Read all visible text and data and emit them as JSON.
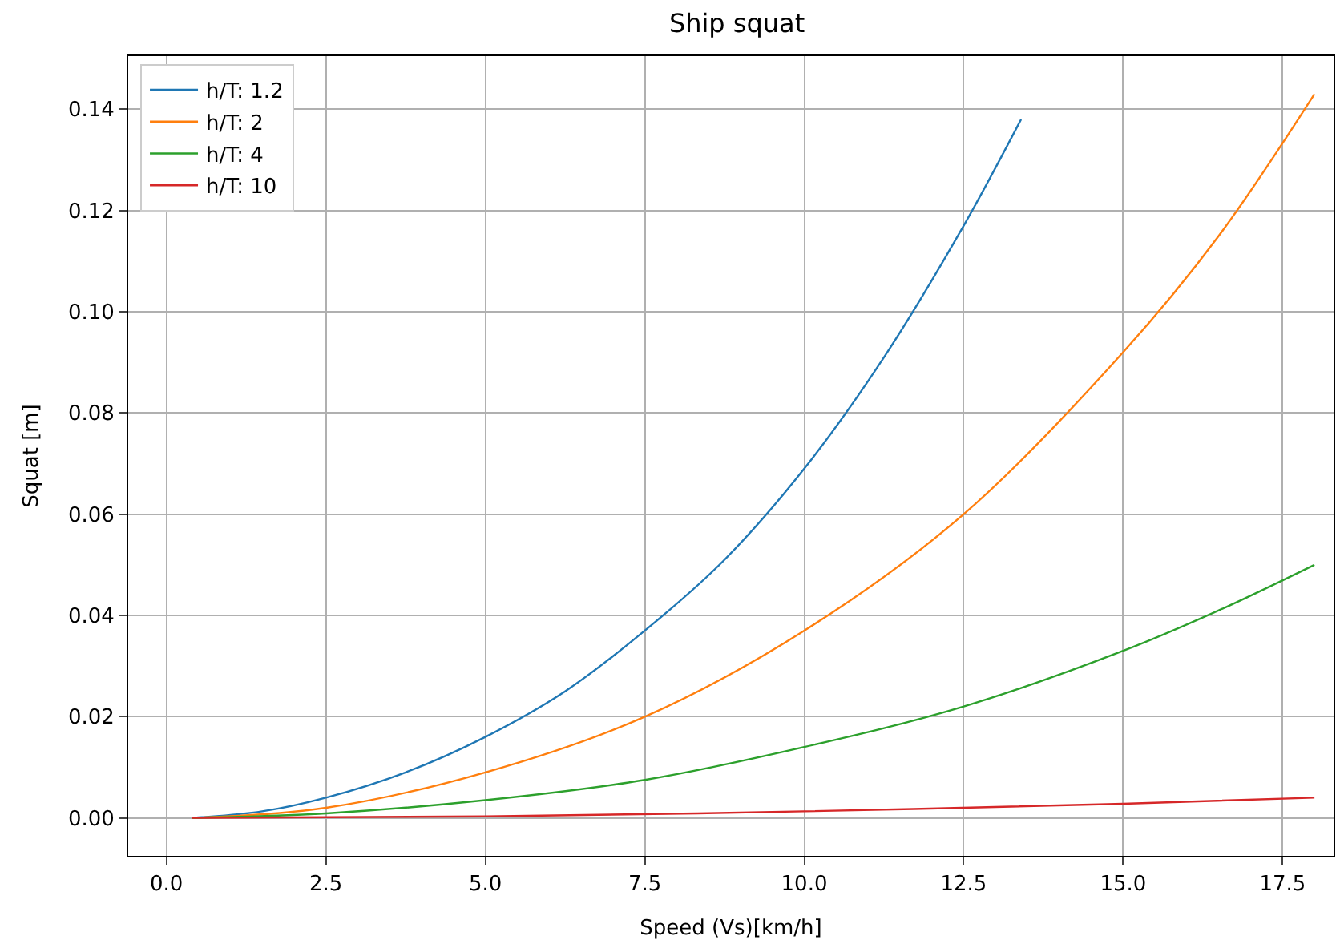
{
  "chart_data": {
    "type": "line",
    "title": "Ship squat",
    "xlabel": "Speed (Vs)[km/h]",
    "ylabel": "Squat [m]",
    "xlim": [
      -0.6,
      18.3
    ],
    "ylim": [
      -0.0075,
      0.1505
    ],
    "xticks": [
      {
        "value": 0,
        "label": "0.0"
      },
      {
        "value": 2.5,
        "label": "2.5"
      },
      {
        "value": 5,
        "label": "5.0"
      },
      {
        "value": 7.5,
        "label": "7.5"
      },
      {
        "value": 10,
        "label": "10.0"
      },
      {
        "value": 12.5,
        "label": "12.5"
      },
      {
        "value": 15,
        "label": "15.0"
      },
      {
        "value": 17.5,
        "label": "17.5"
      }
    ],
    "yticks": [
      {
        "value": 0,
        "label": "0.00"
      },
      {
        "value": 0.02,
        "label": "0.02"
      },
      {
        "value": 0.04,
        "label": "0.04"
      },
      {
        "value": 0.06,
        "label": "0.06"
      },
      {
        "value": 0.08,
        "label": "0.08"
      },
      {
        "value": 0.1,
        "label": "0.10"
      },
      {
        "value": 0.12,
        "label": "0.12"
      },
      {
        "value": 0.14,
        "label": "0.14"
      }
    ],
    "grid": true,
    "legend": "top left",
    "marker": "none",
    "line_style": "solid",
    "series": [
      {
        "name": "h/T: 1.2",
        "color": "#1f77b4",
        "x": [
          0.4,
          1.5,
          2.5,
          3.75,
          5,
          6.25,
          7.5,
          8.75,
          10,
          11.25,
          12.5,
          13.4
        ],
        "values": [
          0,
          0.0013,
          0.004,
          0.009,
          0.016,
          0.025,
          0.037,
          0.051,
          0.069,
          0.091,
          0.117,
          0.138
        ]
      },
      {
        "name": "h/T: 2",
        "color": "#ff7f0e",
        "x": [
          0.4,
          2.5,
          5,
          7.5,
          10,
          12.5,
          15,
          16.5,
          18
        ],
        "values": [
          0,
          0.002,
          0.009,
          0.02,
          0.037,
          0.06,
          0.092,
          0.115,
          0.143
        ]
      },
      {
        "name": "h/T: 4",
        "color": "#2ca02c",
        "x": [
          0.4,
          2.5,
          5,
          7.5,
          10,
          12.5,
          15,
          16.5,
          18
        ],
        "values": [
          0,
          0.0009,
          0.0035,
          0.0075,
          0.014,
          0.022,
          0.033,
          0.041,
          0.05
        ]
      },
      {
        "name": "h/T: 10",
        "color": "#d62728",
        "x": [
          0.4,
          5,
          10,
          15,
          18
        ],
        "values": [
          0,
          0.0003,
          0.0013,
          0.0028,
          0.004
        ]
      }
    ]
  }
}
